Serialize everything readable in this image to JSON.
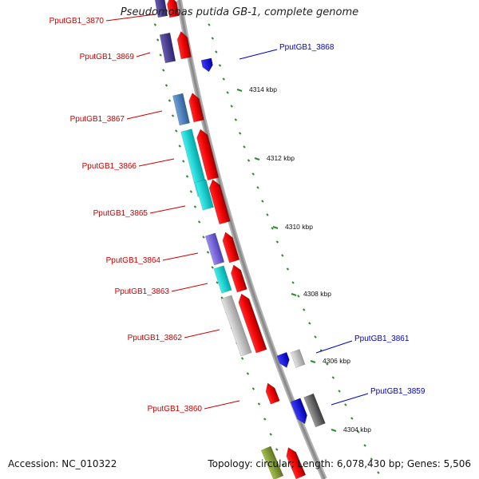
{
  "title": "Pseudomonas putida GB-1, complete genome",
  "footer": {
    "accession": "Accession: NC_010322",
    "summary": "Topology: circular; Length: 6,078,430 bp; Genes: 5,506"
  },
  "colors": {
    "forward_label": "#cc0000",
    "reverse_label": "#0000cc",
    "backbone": "#8c8c8c",
    "kbp_tick": "#2e8b2e",
    "cds": "#ff0000",
    "reverse_cds": "#0000ff"
  },
  "gene_labels": [
    {
      "id": "PputGB1_3870",
      "strand": "forward"
    },
    {
      "id": "PputGB1_3869",
      "strand": "forward"
    },
    {
      "id": "PputGB1_3868",
      "strand": "reverse"
    },
    {
      "id": "PputGB1_3867",
      "strand": "forward"
    },
    {
      "id": "PputGB1_3866",
      "strand": "forward"
    },
    {
      "id": "PputGB1_3865",
      "strand": "forward"
    },
    {
      "id": "PputGB1_3864",
      "strand": "forward"
    },
    {
      "id": "PputGB1_3863",
      "strand": "forward"
    },
    {
      "id": "PputGB1_3862",
      "strand": "forward"
    },
    {
      "id": "PputGB1_3861",
      "strand": "reverse"
    },
    {
      "id": "PputGB1_3860",
      "strand": "forward"
    },
    {
      "id": "PputGB1_3859",
      "strand": "reverse"
    }
  ],
  "kbp_ticks": [
    "4314 kbp",
    "4312 kbp",
    "4310 kbp",
    "4308 kbp",
    "4306 kbp",
    "4304 kbp"
  ]
}
